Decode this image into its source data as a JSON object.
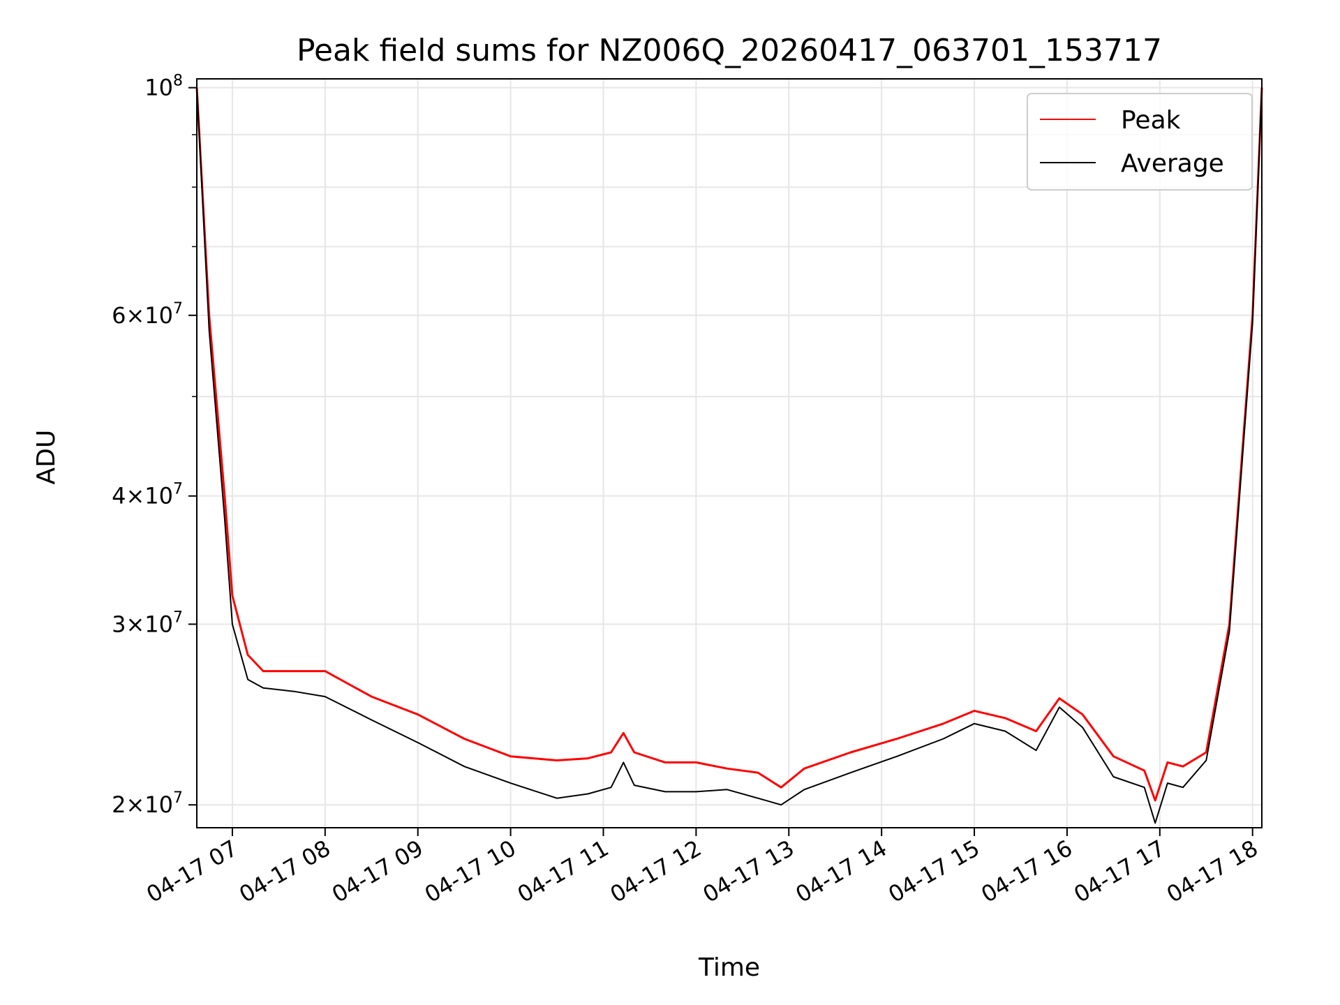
{
  "chart_data": {
    "type": "line",
    "title": "Peak field sums for NZ006Q_20260417_063701_153717",
    "xlabel": "Time",
    "ylabel": "ADU",
    "x_scale": "time",
    "y_scale": "log",
    "xlim": [
      "04-17 06:37",
      "04-17 18:06"
    ],
    "ylim": [
      19000000,
      102000000
    ],
    "x_ticks": [
      "04-17 07",
      "04-17 08",
      "04-17 09",
      "04-17 10",
      "04-17 11",
      "04-17 12",
      "04-17 13",
      "04-17 14",
      "04-17 15",
      "04-17 16",
      "04-17 17",
      "04-17 18"
    ],
    "y_ticks": [
      {
        "value": 100000000,
        "mantissa": "",
        "exp": "8"
      },
      {
        "value": 60000000,
        "mantissa": "6",
        "exp": "7"
      },
      {
        "value": 40000000,
        "mantissa": "4",
        "exp": "7"
      },
      {
        "value": 30000000,
        "mantissa": "3",
        "exp": "7"
      },
      {
        "value": 20000000,
        "mantissa": "2",
        "exp": "7"
      }
    ],
    "y_minor_ticks": [
      90000000,
      80000000,
      70000000,
      50000000
    ],
    "grid": true,
    "legend": {
      "placement": "upper right"
    },
    "series": [
      {
        "name": "Peak",
        "color": "#ff0000",
        "x": [
          "04-17 06:37",
          "04-17 06:45",
          "04-17 06:55",
          "04-17 07:00",
          "04-17 07:10",
          "04-17 07:20",
          "04-17 07:40",
          "04-17 08:00",
          "04-17 08:30",
          "04-17 09:00",
          "04-17 09:30",
          "04-17 10:00",
          "04-17 10:30",
          "04-17 10:50",
          "04-17 11:05",
          "04-17 11:13",
          "04-17 11:20",
          "04-17 11:40",
          "04-17 12:00",
          "04-17 12:20",
          "04-17 12:40",
          "04-17 12:55",
          "04-17 13:10",
          "04-17 13:40",
          "04-17 14:10",
          "04-17 14:40",
          "04-17 15:00",
          "04-17 15:20",
          "04-17 15:40",
          "04-17 15:55",
          "04-17 16:10",
          "04-17 16:30",
          "04-17 16:50",
          "04-17 16:57",
          "04-17 17:05",
          "04-17 17:15",
          "04-17 17:30",
          "04-17 17:45",
          "04-17 18:00",
          "04-17 18:06"
        ],
        "y": [
          100000000,
          60000000,
          40000000,
          32000000,
          28000000,
          27000000,
          27000000,
          27000000,
          25500000,
          24500000,
          23200000,
          22300000,
          22100000,
          22200000,
          22500000,
          23500000,
          22500000,
          22000000,
          22000000,
          21700000,
          21500000,
          20800000,
          21700000,
          22500000,
          23200000,
          24000000,
          24700000,
          24300000,
          23600000,
          25400000,
          24500000,
          22300000,
          21600000,
          20200000,
          22000000,
          21800000,
          22500000,
          30000000,
          60000000,
          100000000
        ]
      },
      {
        "name": "Average",
        "color": "#000000",
        "x": [
          "04-17 06:37",
          "04-17 06:45",
          "04-17 06:55",
          "04-17 07:00",
          "04-17 07:10",
          "04-17 07:20",
          "04-17 07:40",
          "04-17 08:00",
          "04-17 08:30",
          "04-17 09:00",
          "04-17 09:30",
          "04-17 10:00",
          "04-17 10:30",
          "04-17 10:50",
          "04-17 11:05",
          "04-17 11:13",
          "04-17 11:20",
          "04-17 11:40",
          "04-17 12:00",
          "04-17 12:20",
          "04-17 12:40",
          "04-17 12:55",
          "04-17 13:10",
          "04-17 13:40",
          "04-17 14:10",
          "04-17 14:40",
          "04-17 15:00",
          "04-17 15:20",
          "04-17 15:40",
          "04-17 15:55",
          "04-17 16:10",
          "04-17 16:30",
          "04-17 16:50",
          "04-17 16:57",
          "04-17 17:05",
          "04-17 17:15",
          "04-17 17:30",
          "04-17 17:45",
          "04-17 18:00",
          "04-17 18:06"
        ],
        "y": [
          100000000,
          58000000,
          38000000,
          30000000,
          26500000,
          26000000,
          25800000,
          25500000,
          24200000,
          23000000,
          21800000,
          21000000,
          20300000,
          20500000,
          20800000,
          22000000,
          20900000,
          20600000,
          20600000,
          20700000,
          20300000,
          20000000,
          20700000,
          21500000,
          22300000,
          23200000,
          24000000,
          23600000,
          22600000,
          24900000,
          23800000,
          21300000,
          20800000,
          19200000,
          21000000,
          20800000,
          22100000,
          29500000,
          59000000,
          100000000
        ]
      }
    ]
  }
}
